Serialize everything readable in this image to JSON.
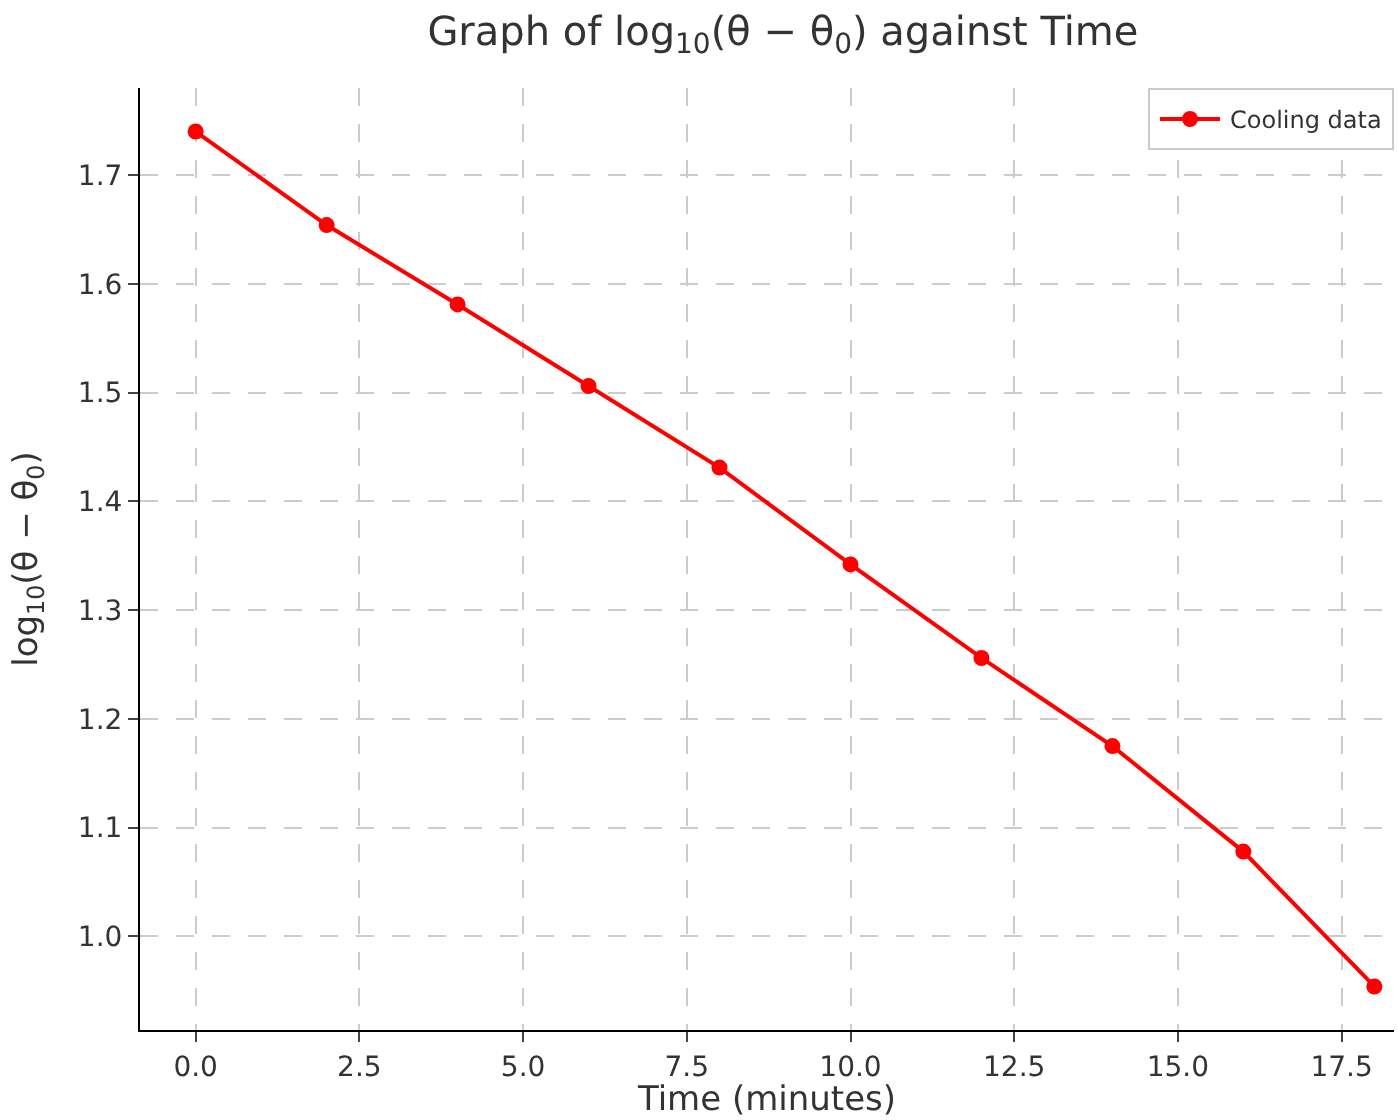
{
  "chart_data": {
    "type": "line",
    "title": "Graph of log$_{10}$(θ − θ$_{0}$) against Time",
    "xlabel": "Time (minutes)",
    "ylabel": "log$_{10}$(θ − θ$_{0}$)",
    "x": [
      0,
      2,
      4,
      6,
      8,
      10,
      12,
      14,
      16,
      18
    ],
    "series": [
      {
        "name": "Cooling data",
        "color": "#ff0000",
        "values": [
          1.74,
          1.654,
          1.581,
          1.506,
          1.431,
          1.342,
          1.256,
          1.175,
          1.078,
          0.954
        ]
      }
    ],
    "xlim": [
      -0.85,
      18.3
    ],
    "ylim": [
      0.914,
      1.78
    ],
    "xticks": [
      {
        "value": 0,
        "label": "0.0"
      },
      {
        "value": 2.5,
        "label": "2.5"
      },
      {
        "value": 5,
        "label": "5.0"
      },
      {
        "value": 7.5,
        "label": "7.5"
      },
      {
        "value": 10,
        "label": "10.0"
      },
      {
        "value": 12.5,
        "label": "12.5"
      },
      {
        "value": 15,
        "label": "15.0"
      },
      {
        "value": 17.5,
        "label": "17.5"
      }
    ],
    "yticks": [
      {
        "value": 1.0,
        "label": "1.0"
      },
      1.1,
      1.2,
      1.3,
      1.4,
      1.5,
      1.6,
      1.7
    ],
    "grid": true,
    "legend": "top right",
    "marker": "circle",
    "line_style": "solid"
  }
}
